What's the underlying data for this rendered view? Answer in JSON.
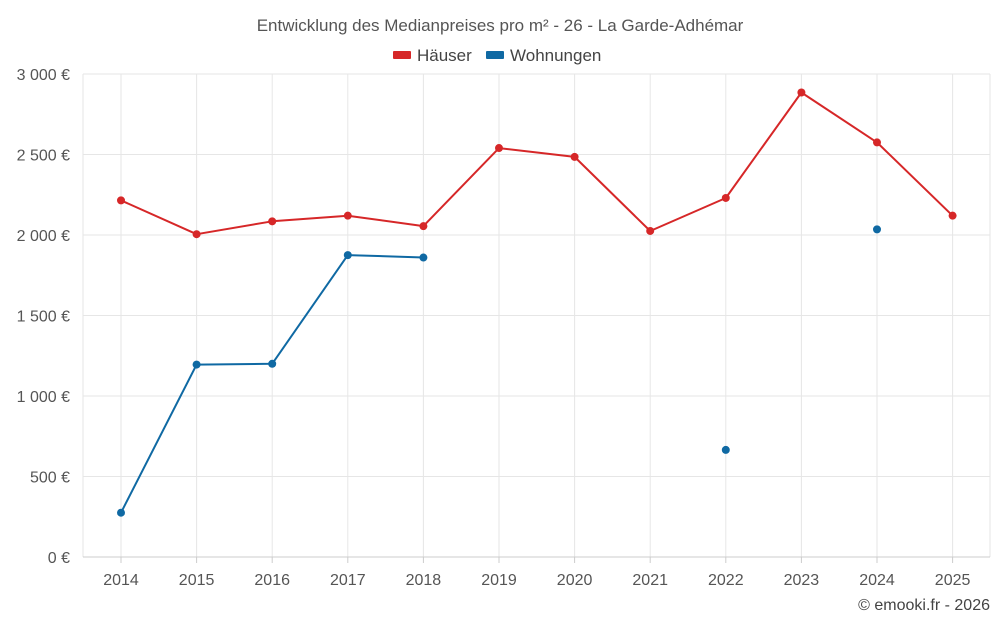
{
  "chart_data": {
    "type": "line",
    "title": "Entwicklung des Medianpreises pro m² - 26 - La Garde-Adhémar",
    "categories": [
      "2014",
      "2015",
      "2016",
      "2017",
      "2018",
      "2019",
      "2020",
      "2021",
      "2022",
      "2023",
      "2024",
      "2025"
    ],
    "y_ticks": [
      "0 €",
      "500 €",
      "1 000 €",
      "1 500 €",
      "2 000 €",
      "2 500 €",
      "3 000 €"
    ],
    "ylim": [
      0,
      3000
    ],
    "grid": true,
    "legend_position": "top",
    "series": [
      {
        "name": "Häuser",
        "color": "#d62728",
        "values": [
          2215,
          2005,
          2085,
          2120,
          2055,
          2540,
          2485,
          2025,
          2230,
          2885,
          2575,
          2120
        ]
      },
      {
        "name": "Wohnungen",
        "color": "#0f69a3",
        "values": [
          275,
          1195,
          1200,
          1875,
          1860,
          null,
          null,
          null,
          665,
          null,
          2035,
          null
        ]
      }
    ]
  },
  "credit": "© emooki.fr - 2026"
}
